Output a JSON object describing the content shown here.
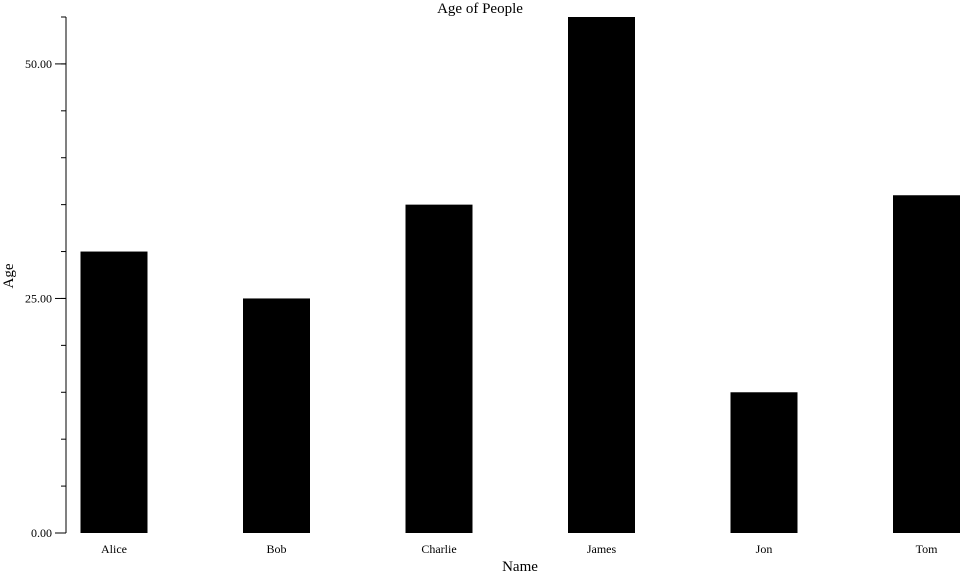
{
  "chart_data": {
    "type": "bar",
    "title": "Age of People",
    "xlabel": "Name",
    "ylabel": "Age",
    "categories": [
      "Alice",
      "Bob",
      "Charlie",
      "James",
      "Jon",
      "Tom"
    ],
    "values": [
      30,
      25,
      35,
      55,
      15,
      36
    ],
    "ylim": [
      0,
      55
    ],
    "yticks": [
      0,
      25,
      50
    ],
    "ytick_labels": [
      "0.00",
      "25.00",
      "50.00"
    ],
    "minor_tick_step": 5,
    "grid": false,
    "legend": "none",
    "bar_color": "#000000"
  }
}
